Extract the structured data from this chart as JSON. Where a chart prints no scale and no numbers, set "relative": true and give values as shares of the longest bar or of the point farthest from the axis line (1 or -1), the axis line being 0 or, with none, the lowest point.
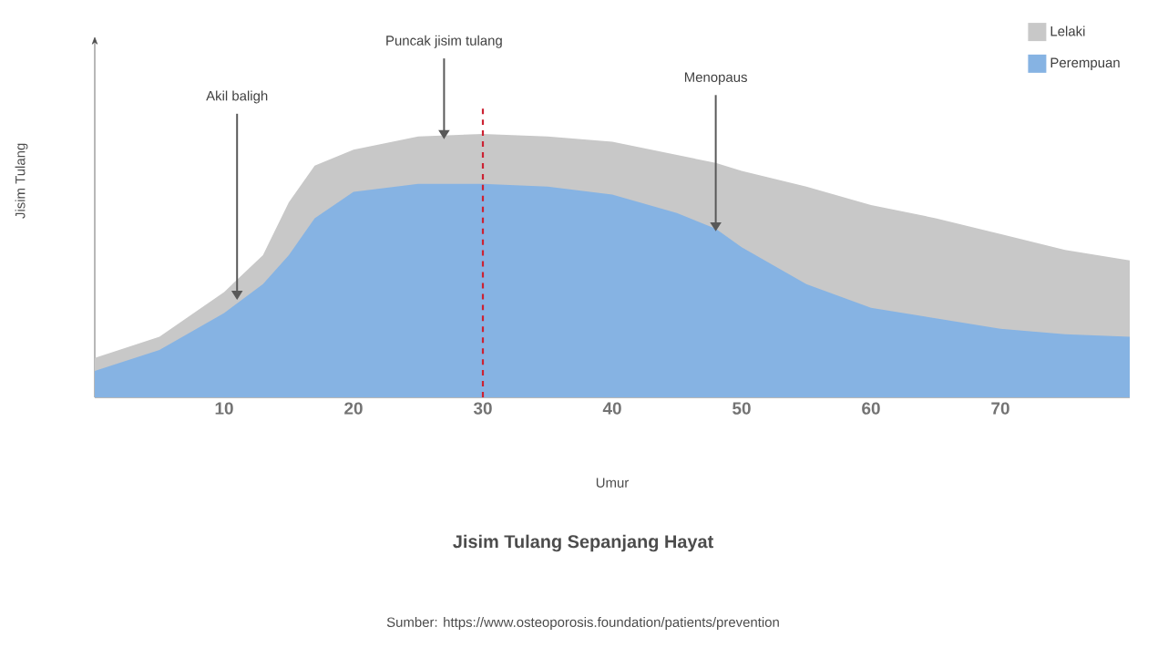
{
  "chart_data": {
    "type": "area",
    "relative": true,
    "title": "Jisim Tulang Sepanjang Hayat",
    "xlabel": "Umur",
    "ylabel": "Jisim Tulang",
    "x": [
      0,
      5,
      10,
      13,
      15,
      17,
      20,
      25,
      30,
      35,
      40,
      45,
      48,
      50,
      55,
      60,
      65,
      70,
      75,
      80
    ],
    "series": [
      {
        "name": "Lelaki",
        "color": "#c8c8c8",
        "values": [
          0.15,
          0.23,
          0.4,
          0.54,
          0.74,
          0.88,
          0.94,
          0.99,
          1.0,
          0.99,
          0.97,
          0.92,
          0.89,
          0.86,
          0.8,
          0.73,
          0.68,
          0.62,
          0.56,
          0.52
        ]
      },
      {
        "name": "Perempuan",
        "color": "#86b3e3",
        "values": [
          0.1,
          0.18,
          0.32,
          0.43,
          0.54,
          0.68,
          0.78,
          0.81,
          0.81,
          0.8,
          0.77,
          0.7,
          0.64,
          0.57,
          0.43,
          0.34,
          0.3,
          0.26,
          0.24,
          0.23
        ]
      }
    ],
    "xlim": [
      0,
      80
    ],
    "xticks": [
      10,
      20,
      30,
      40,
      50,
      60,
      70
    ],
    "legend": "top right",
    "grid": false,
    "ref_lines": [
      {
        "axis": "x",
        "value": 30,
        "color": "#cc2233",
        "line_style": "dashed"
      }
    ],
    "annotations": [
      {
        "text": "Akil baligh",
        "x": 11,
        "y": 0.37
      },
      {
        "text": "Puncak jisim tulang",
        "x": 27,
        "y": 0.98
      },
      {
        "text": "Menopaus",
        "x": 48,
        "y": 0.63
      },
      "Sumber: https://www.osteoporosis.foundation/patients/prevention"
    ]
  }
}
